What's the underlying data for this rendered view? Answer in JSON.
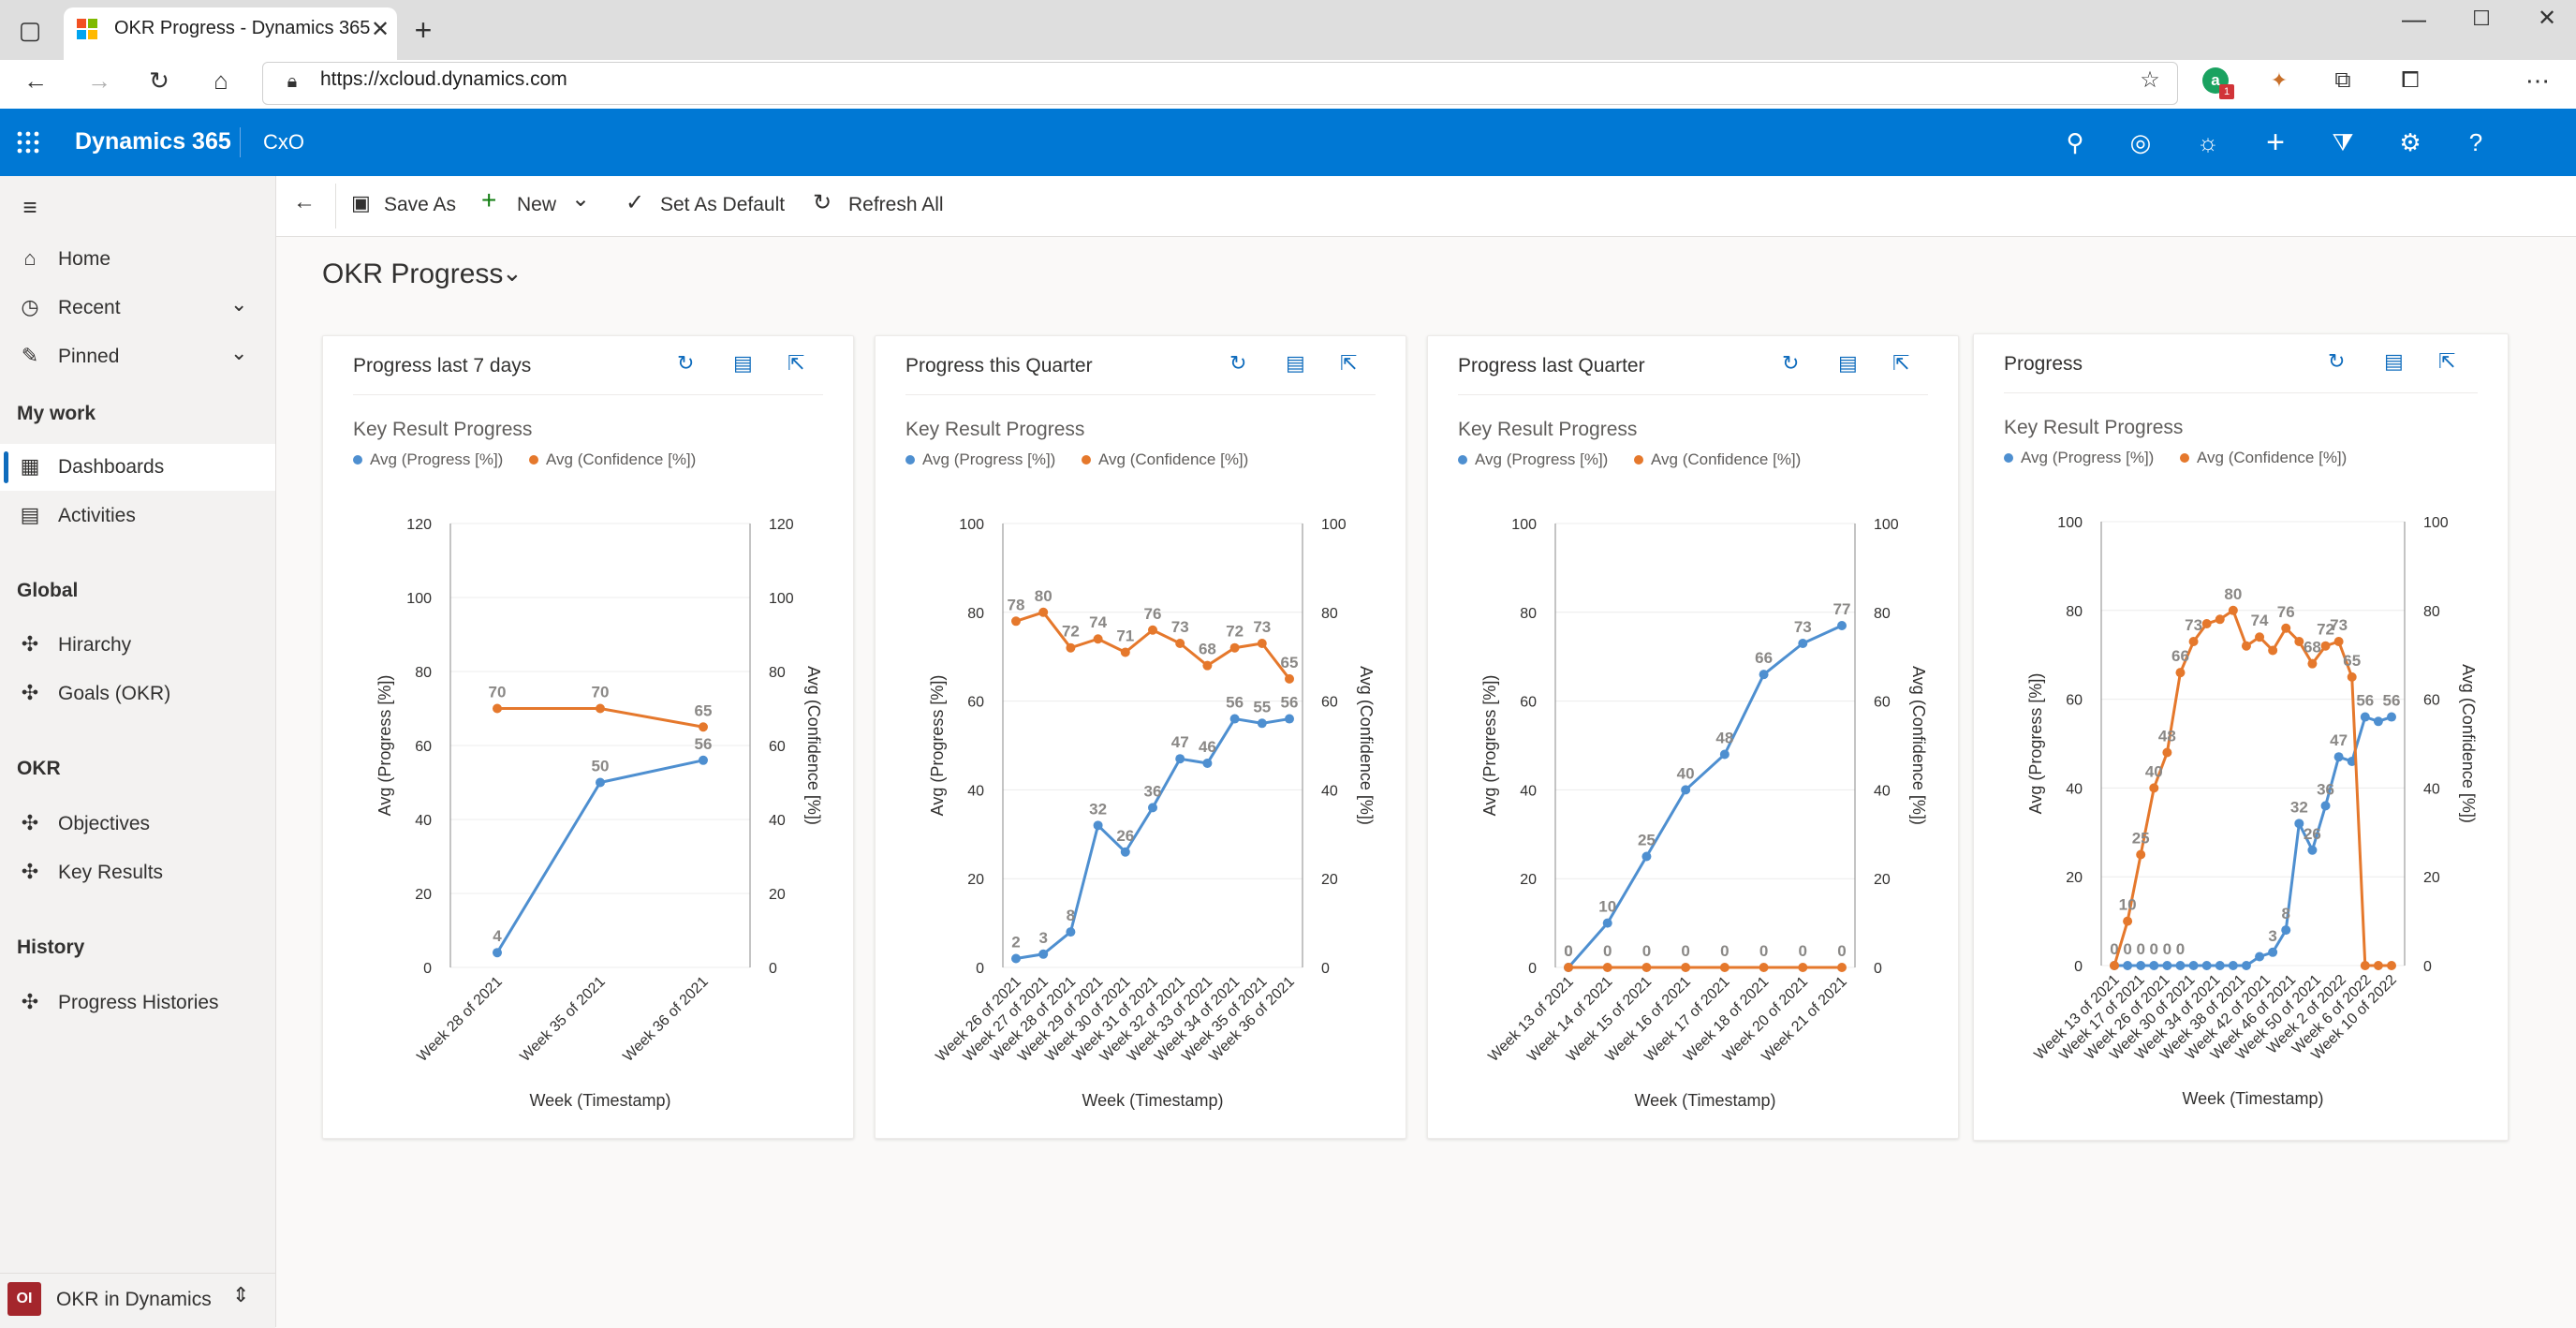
{
  "browser": {
    "tab_title": "OKR Progress - Dynamics 365",
    "url": "https://xcloud.dynamics.com",
    "extension_badge": "1"
  },
  "app": {
    "name": "Dynamics 365",
    "area": "CxO"
  },
  "sidebar": {
    "items_top": [
      {
        "label": "Home",
        "icon": "home-icon"
      },
      {
        "label": "Recent",
        "icon": "clock-icon"
      },
      {
        "label": "Pinned",
        "icon": "pin-icon"
      }
    ],
    "sections": [
      {
        "title": "My work",
        "items": [
          {
            "label": "Dashboards"
          },
          {
            "label": "Activities"
          }
        ]
      },
      {
        "title": "Global",
        "items": [
          {
            "label": "Hirarchy"
          },
          {
            "label": "Goals (OKR)"
          }
        ]
      },
      {
        "title": "OKR",
        "items": [
          {
            "label": "Objectives"
          },
          {
            "label": "Key Results"
          }
        ]
      },
      {
        "title": "History",
        "items": [
          {
            "label": "Progress Histories"
          }
        ]
      }
    ],
    "footer": {
      "badge": "OI",
      "label": "OKR in Dynamics"
    }
  },
  "toolbar": {
    "save_as": "Save As",
    "new": "New",
    "set_default": "Set As Default",
    "refresh_all": "Refresh All"
  },
  "page": {
    "title": "OKR Progress"
  },
  "colors": {
    "progress": "#4e8fd0",
    "confidence": "#e5782c",
    "accent": "#0078d4"
  },
  "chart_data": [
    {
      "type": "line",
      "card_title": "Progress last 7 days",
      "title": "Key Result Progress",
      "xlabel": "Week (Timestamp)",
      "ylabel": "Avg (Progress [%])",
      "y2label": "Avg (Confidence [%])",
      "ylim": [
        0,
        120
      ],
      "yticks": [
        0,
        20,
        40,
        60,
        80,
        100,
        120
      ],
      "categories": [
        "Week 28 of 2021",
        "Week 35 of 2021",
        "Week 36 of 2021"
      ],
      "series": [
        {
          "name": "Avg (Progress [%])",
          "values": [
            4,
            50,
            56
          ]
        },
        {
          "name": "Avg (Confidence [%])",
          "values": [
            70,
            70,
            65
          ]
        }
      ]
    },
    {
      "type": "line",
      "card_title": "Progress this Quarter",
      "title": "Key Result Progress",
      "xlabel": "Week (Timestamp)",
      "ylabel": "Avg (Progress [%])",
      "y2label": "Avg (Confidence [%])",
      "ylim": [
        0,
        100
      ],
      "yticks": [
        0,
        20,
        40,
        60,
        80,
        100
      ],
      "categories": [
        "Week 26 of 2021",
        "Week 27 of 2021",
        "Week 28 of 2021",
        "Week 29 of 2021",
        "Week 30 of 2021",
        "Week 31 of 2021",
        "Week 32 of 2021",
        "Week 33 of 2021",
        "Week 34 of 2021",
        "Week 35 of 2021",
        "Week 36 of 2021"
      ],
      "x_tick_labels": [
        "Week 26 of 2021",
        "Week 27 of 2021",
        "Week 28 of 2021",
        "Week 29 of 2021",
        "Week 30 of 2021",
        "Week 31 of 2021",
        "Week 32 of 2021",
        "Week 33 of 2021",
        "Week 34 of 2021",
        "Week 35 of 2021",
        "Week 36 of 2021"
      ],
      "series": [
        {
          "name": "Avg (Progress [%])",
          "values": [
            2,
            3,
            8,
            32,
            26,
            36,
            47,
            46,
            56,
            55,
            56
          ]
        },
        {
          "name": "Avg (Confidence [%])",
          "values": [
            78,
            80,
            72,
            74,
            71,
            76,
            73,
            68,
            72,
            73,
            65
          ]
        }
      ],
      "labels": {
        "Avg (Progress [%])": [
          2,
          3,
          8,
          32,
          26,
          36,
          47,
          46,
          56,
          55,
          56
        ],
        "Avg (Confidence [%])": [
          78,
          80,
          72,
          74,
          71,
          76,
          73,
          68,
          72,
          73,
          65
        ]
      }
    },
    {
      "type": "line",
      "card_title": "Progress last Quarter",
      "title": "Key Result Progress",
      "xlabel": "Week (Timestamp)",
      "ylabel": "Avg (Progress [%])",
      "y2label": "Avg (Confidence [%])",
      "ylim": [
        0,
        100
      ],
      "yticks": [
        0,
        20,
        40,
        60,
        80,
        100
      ],
      "categories": [
        "Week 13 of 2021",
        "Week 14 of 2021",
        "Week 15 of 2021",
        "Week 16 of 2021",
        "Week 17 of 2021",
        "Week 18 of 2021",
        "Week 20 of 2021",
        "Week 21 of 2021"
      ],
      "x_points": [
        0,
        1,
        2,
        3,
        4,
        5,
        6,
        7
      ],
      "series": [
        {
          "name": "Avg (Progress [%])",
          "values": [
            0,
            10,
            25,
            40,
            48,
            66,
            73,
            77
          ]
        },
        {
          "name": "Avg (Confidence [%])",
          "values": [
            0,
            0,
            0,
            0,
            0,
            0,
            0,
            0
          ]
        }
      ]
    },
    {
      "type": "line",
      "card_title": "Progress",
      "title": "Key Result Progress",
      "xlabel": "Week (Timestamp)",
      "ylabel": "Avg (Progress [%])",
      "y2label": "Avg (Confidence [%])",
      "ylim": [
        0,
        100
      ],
      "yticks": [
        0,
        20,
        40,
        60,
        80,
        100
      ],
      "x_tick_labels": [
        "Week 13 of 2021",
        "Week 17 of 2021",
        "Week 26 of 2021",
        "Week 30 of 2021",
        "Week 34 of 2021",
        "Week 38 of 2021",
        "Week 42 of 2021",
        "Week 46 of 2021",
        "Week 50 of 2021",
        "Week 2 of 2022",
        "Week 6 of 2022",
        "Week 10 of 2022"
      ],
      "series": [
        {
          "name": "Avg (Progress [%])",
          "values": [
            0,
            0,
            0,
            0,
            0,
            0,
            0,
            0,
            0,
            0,
            0,
            2,
            3,
            8,
            32,
            26,
            36,
            47,
            46,
            56,
            55,
            56
          ]
        },
        {
          "name": "Avg (Confidence [%])",
          "values": [
            0,
            10,
            25,
            40,
            48,
            66,
            73,
            77,
            78,
            80,
            72,
            74,
            71,
            76,
            73,
            68,
            72,
            73,
            65,
            0,
            0,
            0
          ]
        }
      ],
      "labels": {
        "Avg (Progress [%])": [
          0,
          0,
          0,
          0,
          0,
          0,
          0,
          3,
          8,
          32,
          26,
          36,
          47,
          56,
          56
        ],
        "Avg (Confidence [%])": [
          0,
          10,
          25,
          40,
          48,
          66,
          73,
          78,
          72,
          71,
          76,
          68,
          73,
          65
        ]
      }
    }
  ]
}
